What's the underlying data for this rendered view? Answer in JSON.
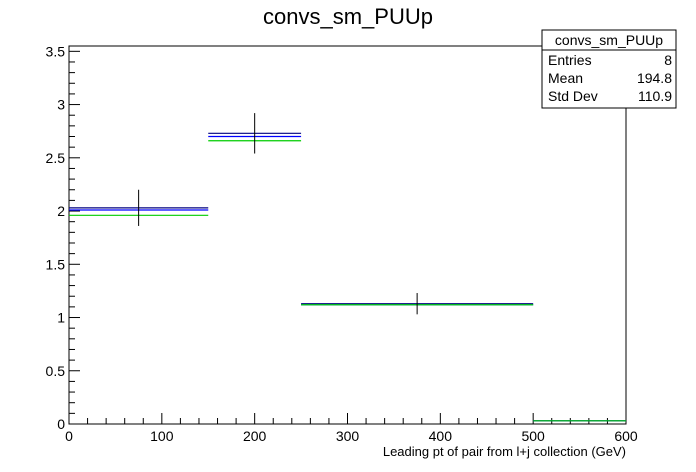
{
  "chart_data": {
    "type": "histogram",
    "title": "convs_sm_PUUp",
    "xlabel": "Leading pt of pair from l+j collection (GeV)",
    "ylabel": "",
    "xlim": [
      0,
      600
    ],
    "ylim": [
      0,
      3.55
    ],
    "x_ticks": [
      0,
      100,
      200,
      300,
      400,
      500,
      600
    ],
    "y_ticks": [
      0,
      0.5,
      1,
      1.5,
      2,
      2.5,
      3,
      3.5
    ],
    "x_tick_labels": [
      "0",
      "100",
      "200",
      "300",
      "400",
      "500",
      "600"
    ],
    "y_tick_labels": [
      "0",
      "0.5",
      "1",
      "1.5",
      "2",
      "2.5",
      "3",
      "3.5"
    ],
    "bins": [
      {
        "x_low": 0,
        "x_high": 150,
        "x_center": 75,
        "error": 0.17
      },
      {
        "x_low": 150,
        "x_high": 250,
        "x_center": 200,
        "error": 0.19
      },
      {
        "x_low": 250,
        "x_high": 500,
        "x_center": 375,
        "error": 0.1
      },
      {
        "x_low": 500,
        "x_high": 600,
        "x_center": 550,
        "error": 0
      }
    ],
    "series": [
      {
        "color": "#000080",
        "values": [
          2.03,
          2.73,
          1.13,
          0.03
        ]
      },
      {
        "color": "#0000ff",
        "values": [
          2.01,
          2.7,
          1.12,
          0.03
        ]
      },
      {
        "color": "#00cc00",
        "values": [
          1.96,
          2.66,
          1.12,
          0.03
        ]
      }
    ],
    "error_bar_color": "#000000",
    "stats_box": {
      "title": "convs_sm_PUUp",
      "rows": [
        {
          "label": "Entries",
          "value": "8"
        },
        {
          "label": "Mean",
          "value": "194.8"
        },
        {
          "label": "Std Dev",
          "value": "110.9"
        }
      ]
    }
  }
}
